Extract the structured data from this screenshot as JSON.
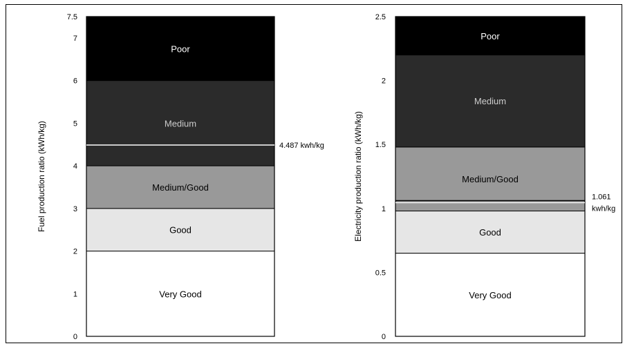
{
  "chart_data": [
    {
      "type": "bar",
      "subtype": "stacked-range",
      "ylabel": "Fuel production ratio (kWh/kg)",
      "ylim": [
        0,
        7.5
      ],
      "yticks": [
        "0",
        "1",
        "2",
        "3",
        "4",
        "5",
        "6",
        "7",
        "7.5"
      ],
      "ytick_values": [
        0,
        1,
        2,
        3,
        4,
        5,
        6,
        7,
        7.5
      ],
      "bands": [
        {
          "label": "Very Good",
          "from": 0,
          "to": 2.0,
          "color": "#ffffff",
          "text_color": "#000000"
        },
        {
          "label": "Good",
          "from": 2.0,
          "to": 3.0,
          "color": "#e6e6e6",
          "text_color": "#000000"
        },
        {
          "label": "Medium/Good",
          "from": 3.0,
          "to": 4.0,
          "color": "#999999",
          "text_color": "#000000"
        },
        {
          "label": "Medium",
          "from": 4.0,
          "to": 6.0,
          "color": "#2b2b2b",
          "text_color": "#cccccc"
        },
        {
          "label": "Poor",
          "from": 6.0,
          "to": 7.5,
          "color": "#000000",
          "text_color": "#ffffff"
        }
      ],
      "marker": {
        "value": 4.487,
        "label": "4.487 kwh/kg"
      }
    },
    {
      "type": "bar",
      "subtype": "stacked-range",
      "ylabel": "Electricity production ratio (kWh/kg)",
      "ylim": [
        0,
        2.5
      ],
      "yticks": [
        "0",
        "0.5",
        "1",
        "1.5",
        "2",
        "2.5"
      ],
      "ytick_values": [
        0,
        0.5,
        1,
        1.5,
        2,
        2.5
      ],
      "bands": [
        {
          "label": "Very Good",
          "from": 0,
          "to": 0.65,
          "color": "#ffffff",
          "text_color": "#000000"
        },
        {
          "label": "Good",
          "from": 0.65,
          "to": 0.98,
          "color": "#e6e6e6",
          "text_color": "#000000"
        },
        {
          "label": "Medium/Good",
          "from": 0.98,
          "to": 1.48,
          "color": "#999999",
          "text_color": "#000000"
        },
        {
          "label": "Medium",
          "from": 1.48,
          "to": 2.2,
          "color": "#2b2b2b",
          "text_color": "#cccccc"
        },
        {
          "label": "Poor",
          "from": 2.2,
          "to": 2.5,
          "color": "#000000",
          "text_color": "#ffffff"
        }
      ],
      "marker": {
        "value": 1.061,
        "label_lines": [
          "1.061",
          "kwh/kg"
        ]
      }
    }
  ]
}
